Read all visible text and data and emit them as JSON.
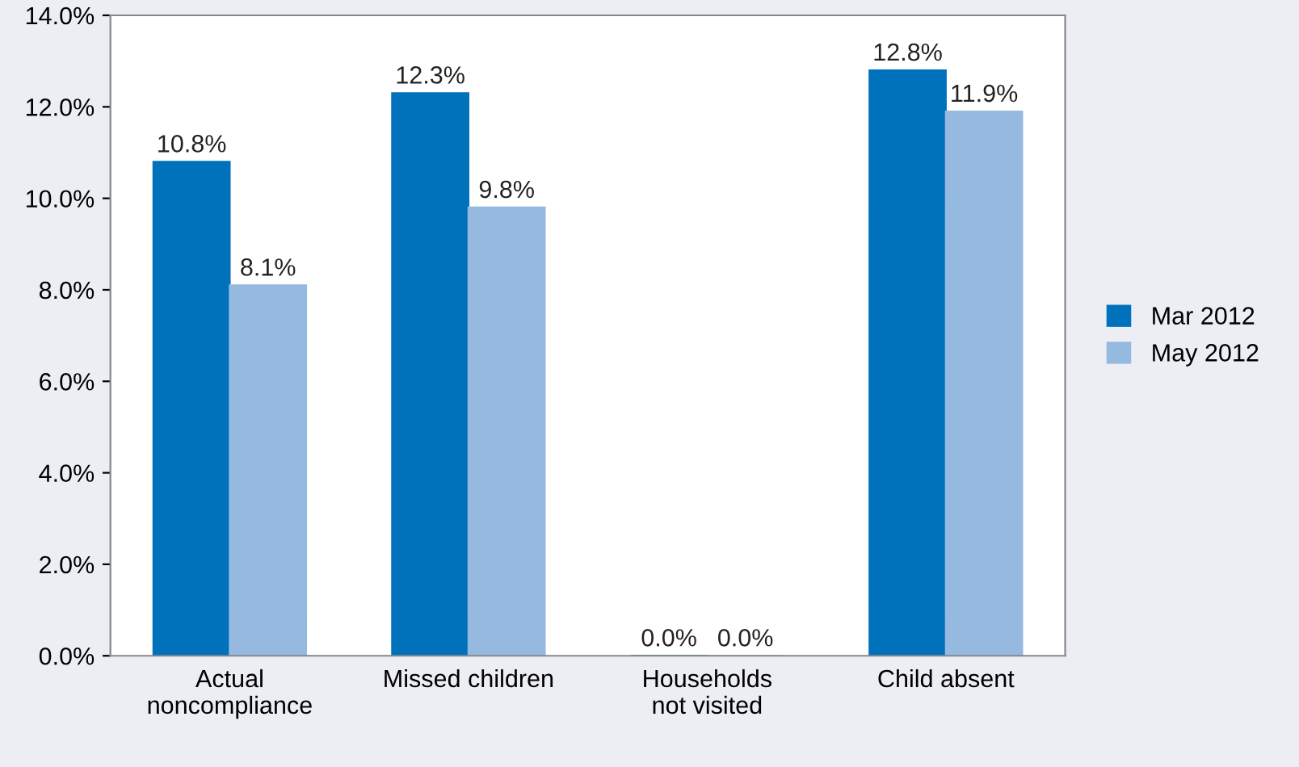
{
  "chart_data": {
    "type": "bar",
    "categories": [
      "Actual\nnoncompliance",
      "Missed children",
      "Households\nnot visited",
      "Child absent"
    ],
    "series": [
      {
        "name": "Mar 2012",
        "color": "#0072bc",
        "values": [
          10.8,
          12.3,
          0.0,
          12.8
        ],
        "value_labels": [
          "10.8%",
          "12.3%",
          "0.0%",
          "12.8%"
        ]
      },
      {
        "name": "May 2012",
        "color": "#96b9e0",
        "values": [
          8.1,
          9.8,
          0.0,
          11.9
        ],
        "value_labels": [
          "8.1%",
          "9.8%",
          "0.0%",
          "11.9%"
        ]
      }
    ],
    "ylim": [
      0,
      14
    ],
    "yticks": [
      {
        "value": 0,
        "label": "0.0%"
      },
      {
        "value": 2,
        "label": "2.0%"
      },
      {
        "value": 4,
        "label": "4.0%"
      },
      {
        "value": 6,
        "label": "6.0%"
      },
      {
        "value": 8,
        "label": "8.0%"
      },
      {
        "value": 10,
        "label": "10.0%"
      },
      {
        "value": 12,
        "label": "12.0%"
      },
      {
        "value": 14,
        "label": "14.0%"
      }
    ],
    "grid": false,
    "legend": "right"
  }
}
